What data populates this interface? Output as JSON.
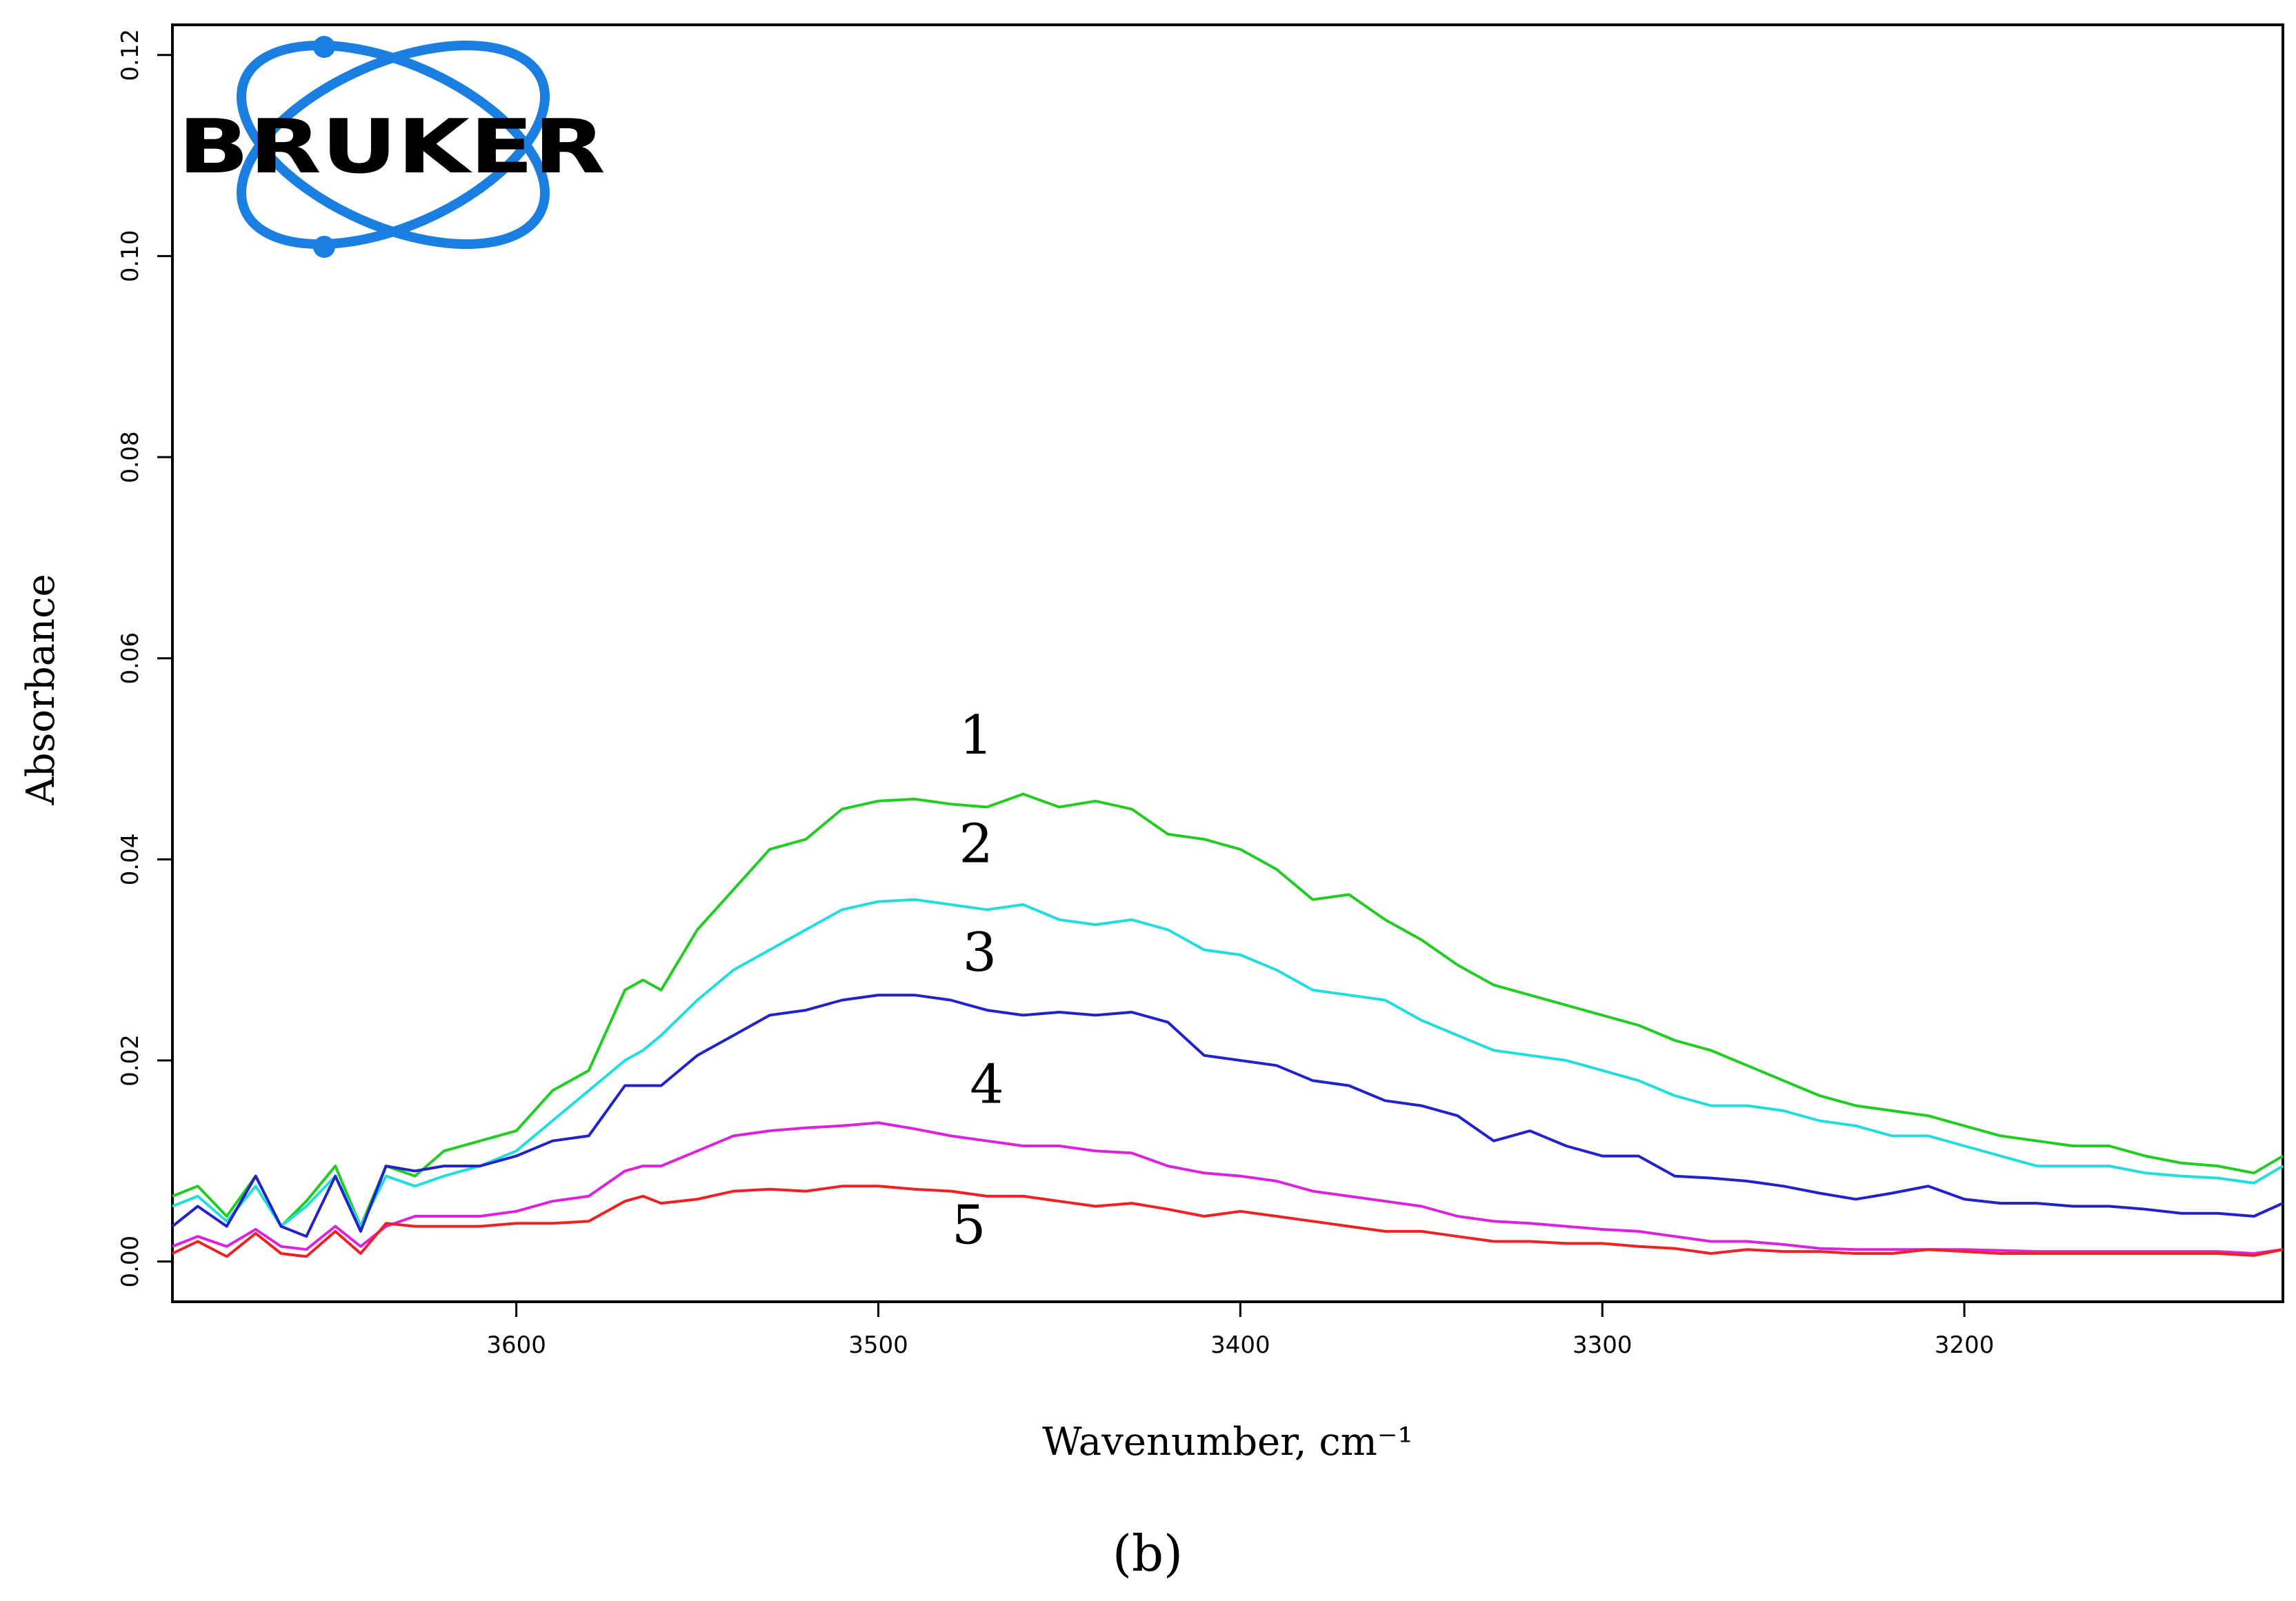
{
  "chart_data": {
    "type": "line",
    "xlabel": "Wavenumber, cm⁻¹",
    "ylabel": "Absorbance",
    "xlim": [
      3695,
      3112
    ],
    "ylim": [
      -0.004,
      0.123
    ],
    "x_reversed": true,
    "x_ticks": [
      "3600",
      "3500",
      "3400",
      "3300",
      "3200"
    ],
    "x_tick_values": [
      3600,
      3500,
      3400,
      3300,
      3200
    ],
    "y_ticks": [
      "0.00",
      "0.02",
      "0.04",
      "0.06",
      "0.08",
      "0.10",
      "0.12"
    ],
    "y_tick_values": [
      0.0,
      0.02,
      0.04,
      0.06,
      0.08,
      0.1,
      0.12
    ],
    "grid": false,
    "panel_label": "(b)",
    "logo_text": "BRUKER",
    "curve_labels": [
      {
        "text": "1",
        "x": 3473,
        "y": 0.0505
      },
      {
        "text": "2",
        "x": 3473,
        "y": 0.0397
      },
      {
        "text": "3",
        "x": 3472,
        "y": 0.0289
      },
      {
        "text": "4",
        "x": 3470,
        "y": 0.0158
      },
      {
        "text": "5",
        "x": 3475,
        "y": 0.0018
      }
    ],
    "x": [
      3695,
      3688,
      3680,
      3672,
      3665,
      3658,
      3650,
      3643,
      3636,
      3628,
      3620,
      3610,
      3600,
      3590,
      3580,
      3570,
      3565,
      3560,
      3550,
      3540,
      3530,
      3520,
      3510,
      3500,
      3490,
      3480,
      3470,
      3460,
      3450,
      3440,
      3430,
      3420,
      3410,
      3400,
      3390,
      3380,
      3370,
      3360,
      3350,
      3340,
      3330,
      3320,
      3310,
      3300,
      3290,
      3280,
      3270,
      3260,
      3250,
      3240,
      3230,
      3220,
      3210,
      3200,
      3190,
      3180,
      3170,
      3160,
      3150,
      3140,
      3130,
      3120,
      3112
    ],
    "series": [
      {
        "name": "",
        "color": "#22cc22",
        "values": [
          0.0065,
          0.0075,
          0.0045,
          0.0085,
          0.0035,
          0.006,
          0.0095,
          0.0035,
          0.0095,
          0.0085,
          0.011,
          0.012,
          0.013,
          0.017,
          0.019,
          0.027,
          0.028,
          0.027,
          0.033,
          0.037,
          0.041,
          0.042,
          0.045,
          0.0458,
          0.046,
          0.0455,
          0.0452,
          0.0465,
          0.0452,
          0.0458,
          0.045,
          0.0425,
          0.042,
          0.041,
          0.039,
          0.036,
          0.0365,
          0.034,
          0.032,
          0.0295,
          0.0275,
          0.0265,
          0.0255,
          0.0245,
          0.0235,
          0.022,
          0.021,
          0.0195,
          0.018,
          0.0165,
          0.0155,
          0.015,
          0.0145,
          0.0135,
          0.0125,
          0.012,
          0.0115,
          0.0115,
          0.0105,
          0.0098,
          0.0095,
          0.0088,
          0.0105
        ]
      },
      {
        "name": "",
        "color": "#22dddd",
        "values": [
          0.0055,
          0.0065,
          0.004,
          0.0075,
          0.0035,
          0.0055,
          0.0085,
          0.0035,
          0.0085,
          0.0075,
          0.0085,
          0.0095,
          0.011,
          0.014,
          0.017,
          0.02,
          0.021,
          0.0225,
          0.026,
          0.029,
          0.031,
          0.033,
          0.035,
          0.0358,
          0.036,
          0.0355,
          0.035,
          0.0355,
          0.034,
          0.0335,
          0.034,
          0.033,
          0.031,
          0.0305,
          0.029,
          0.027,
          0.0265,
          0.026,
          0.024,
          0.0225,
          0.021,
          0.0205,
          0.02,
          0.019,
          0.018,
          0.0165,
          0.0155,
          0.0155,
          0.015,
          0.014,
          0.0135,
          0.0125,
          0.0125,
          0.0115,
          0.0105,
          0.0095,
          0.0095,
          0.0095,
          0.0088,
          0.0085,
          0.0083,
          0.0078,
          0.0095
        ]
      },
      {
        "name": "",
        "color": "#2222cc",
        "values": [
          0.0035,
          0.0055,
          0.0035,
          0.0085,
          0.0035,
          0.0025,
          0.0085,
          0.003,
          0.0095,
          0.009,
          0.0095,
          0.0095,
          0.0105,
          0.012,
          0.0125,
          0.0175,
          0.0175,
          0.0175,
          0.0205,
          0.0225,
          0.0245,
          0.025,
          0.026,
          0.0265,
          0.0265,
          0.026,
          0.025,
          0.0245,
          0.0248,
          0.0245,
          0.0248,
          0.0238,
          0.0205,
          0.02,
          0.0195,
          0.018,
          0.0175,
          0.016,
          0.0155,
          0.0145,
          0.012,
          0.013,
          0.0115,
          0.0105,
          0.0105,
          0.0085,
          0.0083,
          0.008,
          0.0075,
          0.0068,
          0.0062,
          0.0068,
          0.0075,
          0.0062,
          0.0058,
          0.0058,
          0.0055,
          0.0055,
          0.0052,
          0.0048,
          0.0048,
          0.0045,
          0.0058
        ]
      },
      {
        "name": "",
        "color": "#dd22dd",
        "values": [
          0.0015,
          0.0025,
          0.0015,
          0.0032,
          0.0015,
          0.0012,
          0.0035,
          0.0015,
          0.0035,
          0.0045,
          0.0045,
          0.0045,
          0.005,
          0.006,
          0.0065,
          0.009,
          0.0095,
          0.0095,
          0.011,
          0.0125,
          0.013,
          0.0133,
          0.0135,
          0.0138,
          0.0132,
          0.0125,
          0.012,
          0.0115,
          0.0115,
          0.011,
          0.0108,
          0.0095,
          0.0088,
          0.0085,
          0.008,
          0.007,
          0.0065,
          0.006,
          0.0055,
          0.0045,
          0.004,
          0.0038,
          0.0035,
          0.0032,
          0.003,
          0.0025,
          0.002,
          0.002,
          0.0017,
          0.0013,
          0.0012,
          0.0012,
          0.0012,
          0.0012,
          0.0011,
          0.001,
          0.001,
          0.001,
          0.001,
          0.001,
          0.001,
          0.0008,
          0.0012
        ]
      },
      {
        "name": "",
        "color": "#ee2222",
        "values": [
          0.0008,
          0.002,
          0.0005,
          0.0028,
          0.0008,
          0.0005,
          0.003,
          0.0008,
          0.0038,
          0.0035,
          0.0035,
          0.0035,
          0.0038,
          0.0038,
          0.004,
          0.006,
          0.0065,
          0.0058,
          0.0062,
          0.007,
          0.0072,
          0.007,
          0.0075,
          0.0075,
          0.0072,
          0.007,
          0.0065,
          0.0065,
          0.006,
          0.0055,
          0.0058,
          0.0052,
          0.0045,
          0.005,
          0.0045,
          0.004,
          0.0035,
          0.003,
          0.003,
          0.0025,
          0.002,
          0.002,
          0.0018,
          0.0018,
          0.0015,
          0.0013,
          0.0008,
          0.0012,
          0.001,
          0.001,
          0.0008,
          0.0008,
          0.0012,
          0.001,
          0.0008,
          0.0008,
          0.0008,
          0.0008,
          0.0008,
          0.0008,
          0.0008,
          0.0006,
          0.0012
        ]
      }
    ]
  }
}
